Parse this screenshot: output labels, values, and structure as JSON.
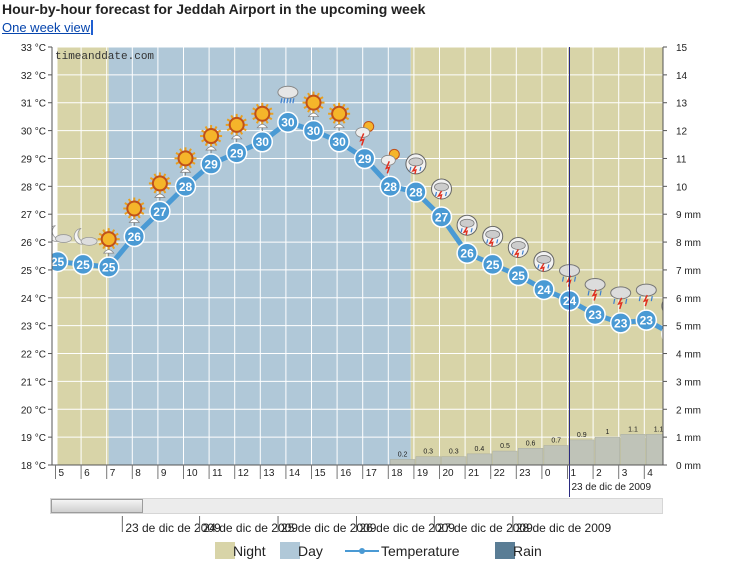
{
  "header": {
    "title": "Hour-by-hour forecast for Jeddah Airport in the upcoming week",
    "week_link": "One week view"
  },
  "watermark": "timeanddate.com",
  "colors": {
    "night": "#d8d4a8",
    "day": "#b0c8d8",
    "temperature": "#4a9ad4",
    "rain": "#5a7d95",
    "grid": "#ffffff",
    "now_line": "#2a2a80"
  },
  "legend": {
    "night": "Night",
    "day": "Day",
    "temperature": "Temperature",
    "rain": "Rain"
  },
  "scroll": {
    "thumb_fraction": 0.15,
    "thumb_start": 0.0
  },
  "chart_data": {
    "type": "line",
    "x": [
      "5",
      "6",
      "7",
      "8",
      "9",
      "10",
      "11",
      "12",
      "13",
      "14",
      "15",
      "16",
      "17",
      "18",
      "19",
      "20",
      "21",
      "22",
      "23",
      "0",
      "1",
      "2",
      "3",
      "4"
    ],
    "x_date_label": "23 de dic de 2009",
    "x_date_label_at": "0",
    "yleft_ticks": [
      "18 °C",
      "19 °C",
      "20 °C",
      "21 °C",
      "22 °C",
      "23 °C",
      "24 °C",
      "25 °C",
      "26 °C",
      "27 °C",
      "28 °C",
      "29 °C",
      "30 °C",
      "31 °C",
      "32 °C",
      "33 °C"
    ],
    "yright_ticks": [
      "0 mm",
      "1 mm",
      "2 mm",
      "3 mm",
      "4 mm",
      "5 mm",
      "6 mm",
      "7 mm",
      "8 mm",
      "9 mm",
      "10",
      "11",
      "12",
      "13",
      "14",
      "15"
    ],
    "ylim_left": [
      18,
      33
    ],
    "ylim_right": [
      0,
      15
    ],
    "periods": [
      {
        "type": "night",
        "from": 4.0,
        "to": 6.0
      },
      {
        "type": "day",
        "from": 6.0,
        "to": 17.8
      },
      {
        "type": "night",
        "from": 17.8,
        "to": 28.0
      }
    ],
    "temperature": {
      "name": "Temperature",
      "values": [
        {
          "x": 4.0,
          "y": 25.3,
          "label": "25"
        },
        {
          "x": 5.0,
          "y": 25.2,
          "label": "25"
        },
        {
          "x": 6.0,
          "y": 25.1,
          "label": "25"
        },
        {
          "x": 7.0,
          "y": 26.2,
          "label": "26"
        },
        {
          "x": 8.0,
          "y": 27.1,
          "label": "27"
        },
        {
          "x": 9.0,
          "y": 28.0,
          "label": "28"
        },
        {
          "x": 10.0,
          "y": 28.8,
          "label": "29"
        },
        {
          "x": 11.0,
          "y": 29.2,
          "label": "29"
        },
        {
          "x": 12.0,
          "y": 29.6,
          "label": "30"
        },
        {
          "x": 13.0,
          "y": 30.3,
          "label": "30"
        },
        {
          "x": 14.0,
          "y": 30.0,
          "label": "30"
        },
        {
          "x": 15.0,
          "y": 29.6,
          "label": "30"
        },
        {
          "x": 16.0,
          "y": 29.0,
          "label": "29"
        },
        {
          "x": 17.0,
          "y": 28.0,
          "label": "28"
        },
        {
          "x": 18.0,
          "y": 27.8,
          "label": "28"
        },
        {
          "x": 19.0,
          "y": 26.9,
          "label": "27"
        },
        {
          "x": 20.0,
          "y": 25.6,
          "label": "26"
        },
        {
          "x": 21.0,
          "y": 25.2,
          "label": "25"
        },
        {
          "x": 22.0,
          "y": 24.8,
          "label": "25"
        },
        {
          "x": 23.0,
          "y": 24.3,
          "label": "24"
        },
        {
          "x": 24.0,
          "y": 23.9,
          "label": "24"
        },
        {
          "x": 25.0,
          "y": 23.4,
          "label": "23"
        },
        {
          "x": 26.0,
          "y": 23.1,
          "label": "23"
        },
        {
          "x": 27.0,
          "y": 23.2,
          "label": "23"
        },
        {
          "x": 28.0,
          "y": 22.7,
          "label": "23"
        },
        {
          "x": 28.7,
          "y": 22.4,
          "label": ""
        }
      ]
    },
    "rain": {
      "name": "Rain",
      "values": [
        {
          "x": 17.0,
          "y": 0.2,
          "label": "0.2"
        },
        {
          "x": 18.0,
          "y": 0.3,
          "label": "0.3"
        },
        {
          "x": 19.0,
          "y": 0.3,
          "label": "0.3"
        },
        {
          "x": 20.0,
          "y": 0.4,
          "label": "0.4"
        },
        {
          "x": 21.0,
          "y": 0.5,
          "label": "0.5"
        },
        {
          "x": 22.0,
          "y": 0.6,
          "label": "0.6"
        },
        {
          "x": 23.0,
          "y": 0.7,
          "label": "0.7"
        },
        {
          "x": 24.0,
          "y": 0.9,
          "label": "0.9"
        },
        {
          "x": 25.0,
          "y": 1.0,
          "label": "1"
        },
        {
          "x": 26.0,
          "y": 1.1,
          "label": "1.1"
        },
        {
          "x": 27.0,
          "y": 1.1,
          "label": "1.1"
        },
        {
          "x": 28.0,
          "y": 1.1,
          "label": "1.1"
        }
      ]
    },
    "now_marker_x": 24.0,
    "weather_icons": [
      {
        "x": 4.0,
        "kind": "moon-cloud"
      },
      {
        "x": 5.0,
        "kind": "moon-cloud"
      },
      {
        "x": 6.0,
        "kind": "sun-umbrella"
      },
      {
        "x": 7.0,
        "kind": "sun-umbrella"
      },
      {
        "x": 8.0,
        "kind": "sun-umbrella"
      },
      {
        "x": 9.0,
        "kind": "sun-umbrella"
      },
      {
        "x": 10.0,
        "kind": "sun-umbrella"
      },
      {
        "x": 11.0,
        "kind": "sun-umbrella"
      },
      {
        "x": 12.0,
        "kind": "sun-umbrella"
      },
      {
        "x": 13.0,
        "kind": "cloud-rain"
      },
      {
        "x": 14.0,
        "kind": "sun-umbrella"
      },
      {
        "x": 15.0,
        "kind": "sun-umbrella"
      },
      {
        "x": 16.0,
        "kind": "thunder-sun"
      },
      {
        "x": 17.0,
        "kind": "thunder-sun"
      },
      {
        "x": 18.0,
        "kind": "storm"
      },
      {
        "x": 19.0,
        "kind": "storm"
      },
      {
        "x": 20.0,
        "kind": "storm"
      },
      {
        "x": 21.0,
        "kind": "storm"
      },
      {
        "x": 22.0,
        "kind": "storm"
      },
      {
        "x": 23.0,
        "kind": "storm"
      },
      {
        "x": 24.0,
        "kind": "thunder-cloud"
      },
      {
        "x": 25.0,
        "kind": "thunder-cloud"
      },
      {
        "x": 26.0,
        "kind": "thunder-cloud"
      },
      {
        "x": 27.0,
        "kind": "thunder-cloud"
      },
      {
        "x": 28.0,
        "kind": "storm"
      },
      {
        "x": 29.0,
        "kind": "storm"
      }
    ]
  },
  "navigator": {
    "ticks": [
      {
        "x": 0.118,
        "label": "23 de dic de 2009"
      },
      {
        "x": 0.244,
        "label": "24 de dic de 2009"
      },
      {
        "x": 0.372,
        "label": "25 de dic de 2009"
      },
      {
        "x": 0.5,
        "label": "26 de dic de 2009"
      },
      {
        "x": 0.627,
        "label": "27 de dic de 2009"
      },
      {
        "x": 0.755,
        "label": "28 de dic de 2009"
      }
    ],
    "range": [
      0,
      1
    ]
  }
}
